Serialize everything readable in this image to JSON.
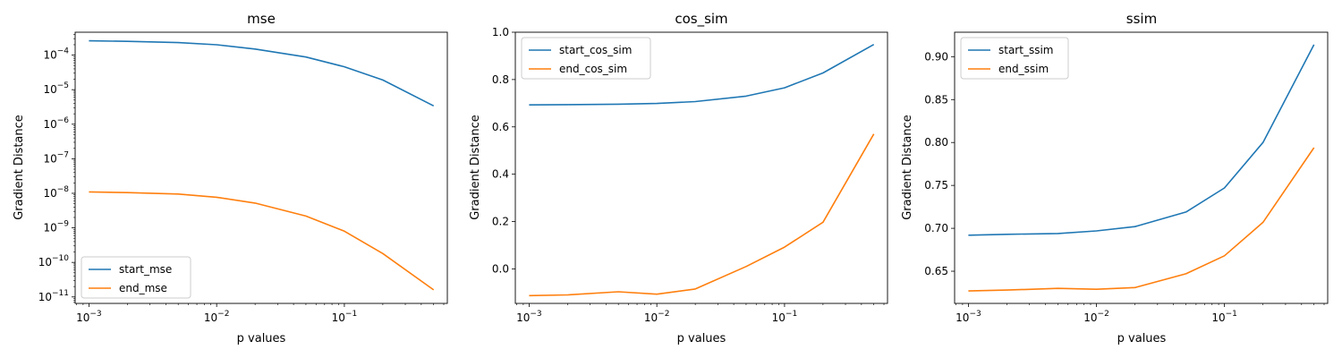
{
  "colors": {
    "start": "#1f77b4",
    "end": "#ff7f0e"
  },
  "chart_data": [
    {
      "type": "line",
      "title": "mse",
      "xlabel": "p values",
      "ylabel": "Gradient Distance",
      "xscale": "log",
      "yscale": "log",
      "grid": false,
      "legend_position": "bottom-left",
      "x": [
        0.001,
        0.002,
        0.005,
        0.01,
        0.02,
        0.05,
        0.1,
        0.2,
        0.5
      ],
      "xticks": [
        {
          "value": 0.001,
          "base": "10",
          "exp": "−3"
        },
        {
          "value": 0.01,
          "base": "10",
          "exp": "−2"
        },
        {
          "value": 0.1,
          "base": "10",
          "exp": "−1"
        }
      ],
      "yticks": [
        {
          "value": 0.0001,
          "base": "10",
          "exp": "−4"
        },
        {
          "value": 1e-05,
          "base": "10",
          "exp": "−5"
        },
        {
          "value": 1e-06,
          "base": "10",
          "exp": "−6"
        },
        {
          "value": 1e-07,
          "base": "10",
          "exp": "−7"
        },
        {
          "value": 1e-08,
          "base": "10",
          "exp": "−8"
        },
        {
          "value": 1e-09,
          "base": "10",
          "exp": "−9"
        },
        {
          "value": 1e-10,
          "base": "10",
          "exp": "−10"
        },
        {
          "value": 1e-11,
          "base": "10",
          "exp": "−11"
        }
      ],
      "series": [
        {
          "name": "start_mse",
          "color_key": "start",
          "values": [
            0.00026,
            0.00025,
            0.00023,
            0.0002,
            0.00015,
            8.8e-05,
            4.6e-05,
            1.9e-05,
            3.4e-06
          ]
        },
        {
          "name": "end_mse",
          "color_key": "end",
          "values": [
            1.1e-08,
            1.05e-08,
            9.5e-09,
            7.7e-09,
            5.2e-09,
            2.2e-09,
            8e-10,
            1.8e-10,
            1.6e-11
          ]
        }
      ]
    },
    {
      "type": "line",
      "title": "cos_sim",
      "xlabel": "p values",
      "ylabel": "Gradient Distance",
      "xscale": "log",
      "yscale": "linear",
      "grid": false,
      "legend_position": "top-left",
      "x": [
        0.001,
        0.002,
        0.005,
        0.01,
        0.02,
        0.05,
        0.1,
        0.2,
        0.5
      ],
      "xticks": [
        {
          "value": 0.001,
          "base": "10",
          "exp": "−3"
        },
        {
          "value": 0.01,
          "base": "10",
          "exp": "−2"
        },
        {
          "value": 0.1,
          "base": "10",
          "exp": "−1"
        }
      ],
      "yticks": [
        {
          "value": 0.0,
          "label": "0.0"
        },
        {
          "value": 0.2,
          "label": "0.2"
        },
        {
          "value": 0.4,
          "label": "0.4"
        },
        {
          "value": 0.6,
          "label": "0.6"
        },
        {
          "value": 0.8,
          "label": "0.8"
        },
        {
          "value": 1.0,
          "label": "1.0"
        }
      ],
      "series": [
        {
          "name": "start_cos_sim",
          "color_key": "start",
          "values": [
            0.693,
            0.694,
            0.696,
            0.699,
            0.707,
            0.73,
            0.765,
            0.828,
            0.948
          ]
        },
        {
          "name": "end_cos_sim",
          "color_key": "end",
          "values": [
            -0.113,
            -0.11,
            -0.097,
            -0.107,
            -0.085,
            0.01,
            0.092,
            0.197,
            0.57
          ]
        }
      ]
    },
    {
      "type": "line",
      "title": "ssim",
      "xlabel": "p values",
      "ylabel": "Gradient Distance",
      "xscale": "log",
      "yscale": "linear",
      "grid": false,
      "legend_position": "top-left",
      "x": [
        0.001,
        0.002,
        0.005,
        0.01,
        0.02,
        0.05,
        0.1,
        0.2,
        0.5
      ],
      "xticks": [
        {
          "value": 0.001,
          "base": "10",
          "exp": "−3"
        },
        {
          "value": 0.01,
          "base": "10",
          "exp": "−2"
        },
        {
          "value": 0.1,
          "base": "10",
          "exp": "−1"
        }
      ],
      "yticks": [
        {
          "value": 0.65,
          "label": "0.65"
        },
        {
          "value": 0.7,
          "label": "0.70"
        },
        {
          "value": 0.75,
          "label": "0.75"
        },
        {
          "value": 0.8,
          "label": "0.80"
        },
        {
          "value": 0.85,
          "label": "0.85"
        },
        {
          "value": 0.9,
          "label": "0.90"
        }
      ],
      "series": [
        {
          "name": "start_ssim",
          "color_key": "start",
          "values": [
            0.692,
            0.693,
            0.694,
            0.697,
            0.702,
            0.719,
            0.747,
            0.8,
            0.914
          ]
        },
        {
          "name": "end_ssim",
          "color_key": "end",
          "values": [
            0.627,
            0.628,
            0.63,
            0.629,
            0.631,
            0.647,
            0.668,
            0.707,
            0.794
          ]
        }
      ]
    }
  ]
}
